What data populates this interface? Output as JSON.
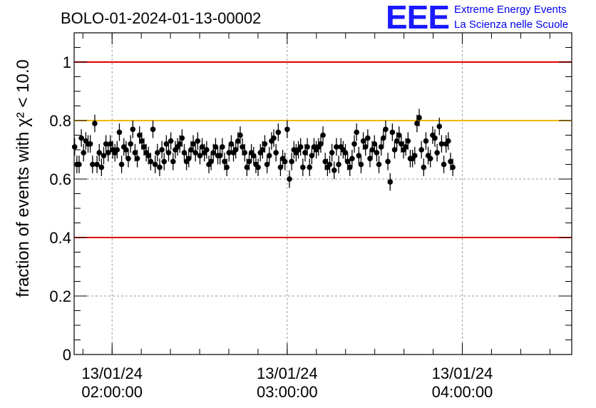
{
  "run_title": "BOLO-01-2024-01-13-00002",
  "logo": {
    "mark": "EEE",
    "line1": "Extreme Energy Events",
    "line2": "La Scienza nelle Scuole"
  },
  "chart_data": {
    "type": "scatter",
    "title": "BOLO-01-2024-01-13-00002",
    "ylabel": "fraction of events with χ² < 10.0",
    "ylim": [
      0,
      1.1
    ],
    "xlim": [
      "2024-01-13T01:47:00",
      "2024-01-13T04:37:30"
    ],
    "x_ticks": [
      {
        "date": "13/01/24",
        "time": "02:00:00"
      },
      {
        "date": "13/01/24",
        "time": "03:00:00"
      },
      {
        "date": "13/01/24",
        "time": "04:00:00"
      }
    ],
    "y_ticks": [
      "0",
      "0.2",
      "0.4",
      "0.6",
      "0.8",
      "1"
    ],
    "grid": true,
    "reference_lines": [
      {
        "y": 1.0,
        "color": "#e00000"
      },
      {
        "y": 0.8,
        "color": "#f2b800"
      },
      {
        "y": 0.4,
        "color": "#e00000"
      }
    ],
    "marker_color": "#000000",
    "error_bar_half_height": 0.03,
    "x_start": "2024-01-13T01:47:10",
    "x_step_seconds": 46,
    "y": [
      0.71,
      0.65,
      0.65,
      0.74,
      0.69,
      0.73,
      0.72,
      0.72,
      0.65,
      0.79,
      0.65,
      0.69,
      0.64,
      0.68,
      0.72,
      0.69,
      0.72,
      0.7,
      0.69,
      0.7,
      0.76,
      0.65,
      0.71,
      0.7,
      0.67,
      0.72,
      0.77,
      0.69,
      0.67,
      0.75,
      0.73,
      0.71,
      0.69,
      0.68,
      0.66,
      0.77,
      0.65,
      0.69,
      0.64,
      0.7,
      0.66,
      0.72,
      0.69,
      0.73,
      0.66,
      0.7,
      0.71,
      0.72,
      0.74,
      0.69,
      0.66,
      0.67,
      0.7,
      0.72,
      0.69,
      0.73,
      0.68,
      0.71,
      0.69,
      0.7,
      0.65,
      0.66,
      0.69,
      0.71,
      0.68,
      0.68,
      0.71,
      0.66,
      0.64,
      0.69,
      0.72,
      0.69,
      0.7,
      0.73,
      0.75,
      0.71,
      0.69,
      0.64,
      0.66,
      0.69,
      0.68,
      0.65,
      0.64,
      0.69,
      0.7,
      0.72,
      0.65,
      0.68,
      0.73,
      0.74,
      0.69,
      0.76,
      0.64,
      0.67,
      0.66,
      0.77,
      0.6,
      0.66,
      0.7,
      0.69,
      0.7,
      0.71,
      0.64,
      0.69,
      0.71,
      0.64,
      0.68,
      0.71,
      0.7,
      0.71,
      0.72,
      0.75,
      0.66,
      0.64,
      0.65,
      0.69,
      0.63,
      0.71,
      0.65,
      0.71,
      0.7,
      0.69,
      0.66,
      0.64,
      0.67,
      0.72,
      0.76,
      0.68,
      0.65,
      0.73,
      0.71,
      0.74,
      0.67,
      0.7,
      0.72,
      0.69,
      0.65,
      0.71,
      0.74,
      0.77,
      0.66,
      0.59,
      0.76,
      0.7,
      0.73,
      0.75,
      0.72,
      0.7,
      0.71,
      0.73,
      0.67,
      0.67,
      0.68,
      0.79,
      0.81,
      0.7,
      0.64,
      0.73,
      0.68,
      0.67,
      0.75,
      0.74,
      0.69,
      0.78,
      0.72,
      0.65,
      0.72,
      0.73,
      0.66,
      0.64
    ]
  }
}
